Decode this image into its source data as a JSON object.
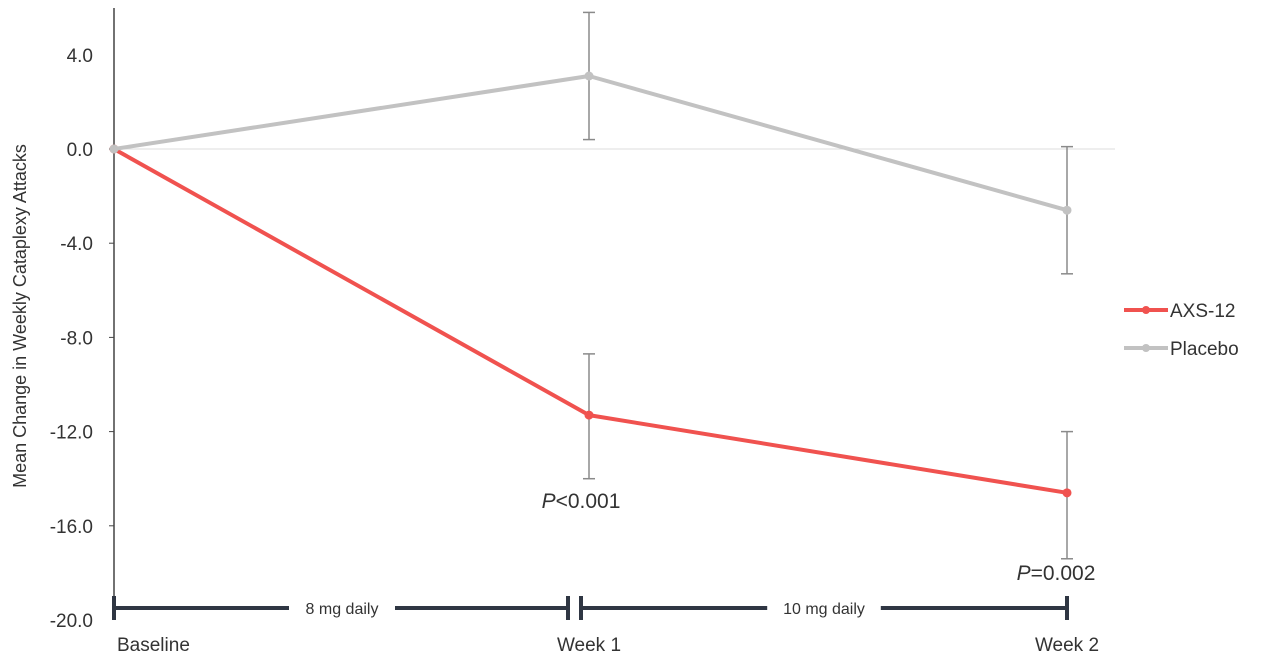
{
  "chart_data": {
    "type": "line",
    "ylabel": "Mean Change in Weekly Cataplexy Attacks",
    "xlabel": "",
    "categories": [
      "Baseline",
      "Week 1",
      "Week 2"
    ],
    "y_ticks": [
      "4.0",
      "0.0",
      "-4.0",
      "-8.0",
      "-12.0",
      "-16.0",
      "-20.0"
    ],
    "ylim": [
      -20,
      6
    ],
    "grid": false,
    "zero_line": true,
    "legend_position": "right",
    "series": [
      {
        "name": "AXS-12",
        "color": "#f0524f",
        "values": [
          0,
          -11.3,
          -14.6
        ],
        "error_low": [
          null,
          -14.0,
          -17.4
        ],
        "error_high": [
          null,
          -8.7,
          -12.0
        ]
      },
      {
        "name": "Placebo",
        "color": "#c2c2c2",
        "values": [
          0,
          3.1,
          -2.6
        ],
        "error_low": [
          null,
          0.4,
          -5.3
        ],
        "error_high": [
          null,
          5.8,
          0.1
        ]
      }
    ],
    "annotations": [
      {
        "prefix": "P",
        "text": "<0.001",
        "at_category": 1
      },
      {
        "prefix": "P",
        "text": "=0.002",
        "at_category": 2
      }
    ],
    "dosing_periods": [
      {
        "label": "8 mg daily",
        "from_category": 0,
        "to_category": 1
      },
      {
        "label": "10 mg daily",
        "from_category": 1,
        "to_category": 2
      }
    ]
  }
}
